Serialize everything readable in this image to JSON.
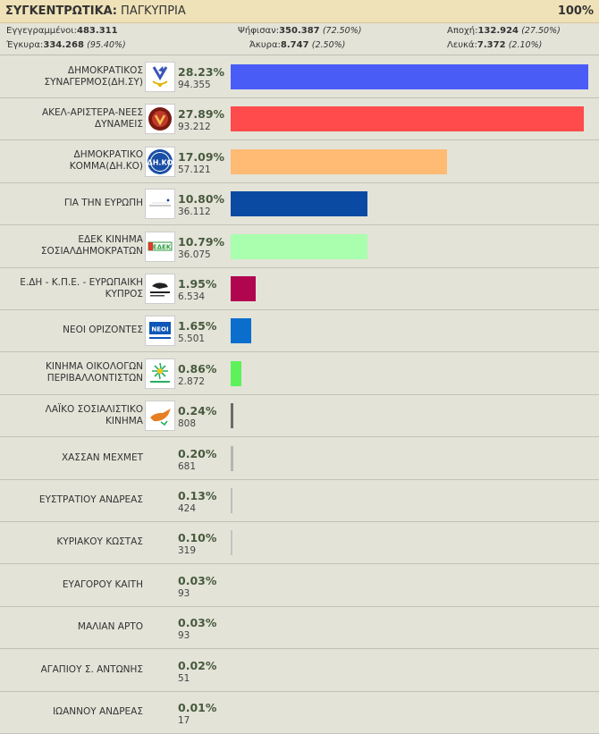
{
  "header": {
    "title_bold": "ΣΥΓΚΕΝΤΡΩΤΙΚΑ:",
    "title_rest": " ΠΑΓΚΥΠΡΙΑ",
    "percent": "100%"
  },
  "stats": {
    "registered": {
      "label": "Εγγεγραμμένοι:",
      "value": "483.311",
      "pct": ""
    },
    "voted": {
      "label": "Ψήφισαν:",
      "value": "350.387",
      "pct": "(72.50%)"
    },
    "abstention": {
      "label": "Αποχή:",
      "value": "132.924",
      "pct": "(27.50%)"
    },
    "valid": {
      "label": "Έγκυρα:",
      "value": "334.268",
      "pct": "(95.40%)"
    },
    "invalid": {
      "label": "Άκυρα:",
      "value": "8.747",
      "pct": "(2.50%)"
    },
    "blank": {
      "label": "Λευκά:",
      "value": "7.372",
      "pct": "(2.10%)"
    }
  },
  "results": [
    {
      "name": "ΔΗΜΟΚΡΑΤΙΚΟΣ ΣΥΝΑΓΕΡΜΟΣ(ΔΗ.ΣΥ)",
      "pct_label": "28.23%",
      "votes": "94.355",
      "pct": 28.23,
      "color": "#4a5cf6",
      "logo": "disy-logo",
      "logo_text": ""
    },
    {
      "name": "ΑΚΕΛ-ΑΡΙΣΤΕΡΑ-ΝΕΕΣ ΔΥΝΑΜΕΙΣ",
      "pct_label": "27.89%",
      "votes": "93.212",
      "pct": 27.89,
      "color": "#ff4b4b",
      "logo": "akel-logo",
      "logo_text": ""
    },
    {
      "name": "ΔΗΜΟΚΡΑΤΙΚΟ ΚΟΜΜΑ(ΔΗ.ΚΟ)",
      "pct_label": "17.09%",
      "votes": "57.121",
      "pct": 17.09,
      "color": "#ffba73",
      "logo": "diko-logo",
      "logo_text": "ΔΗ.ΚΟ"
    },
    {
      "name": "ΓΙΑ ΤΗΝ ΕΥΡΩΠΗ",
      "pct_label": "10.80%",
      "votes": "36.112",
      "pct": 10.8,
      "color": "#0b4aa2",
      "logo": "europe-logo",
      "logo_text": ""
    },
    {
      "name": "ΕΔΕΚ ΚΙΝΗΜΑ ΣΟΣΙΑΛΔΗΜΟΚΡΑΤΩΝ",
      "pct_label": "10.79%",
      "votes": "36.075",
      "pct": 10.79,
      "color": "#a9ffae",
      "logo": "edek-logo",
      "logo_text": "ΕΔΕΚ"
    },
    {
      "name": "Ε.ΔΗ - Κ.Π.Ε. - ΕΥΡΩΠΑΙΚΗ ΚΥΠΡΟΣ",
      "pct_label": "1.95%",
      "votes": "6.534",
      "pct": 1.95,
      "color": "#b0054f",
      "logo": "european-cyprus-logo",
      "logo_text": ""
    },
    {
      "name": "ΝΕΟΙ ΟΡΙΖΟΝΤΕΣ",
      "pct_label": "1.65%",
      "votes": "5.501",
      "pct": 1.65,
      "color": "#0a6fcc",
      "logo": "new-horizons-logo",
      "logo_text": "ΝΕΟΙ"
    },
    {
      "name": "ΚΙΝΗΜΑ ΟΙΚΟΛΟΓΩΝ ΠΕΡΙΒΑΛΛΟΝΤΙΣΤΩΝ",
      "pct_label": "0.86%",
      "votes": "2.872",
      "pct": 0.86,
      "color": "#5ef25a",
      "logo": "ecologists-logo",
      "logo_text": ""
    },
    {
      "name": "ΛΑΪΚΟ ΣΟΣΙΑΛΙΣΤΙΚΟ ΚΙΝΗΜΑ",
      "pct_label": "0.24%",
      "votes": "808",
      "pct": 0.24,
      "color": "#6b6b6b",
      "logo": "popular-socialist-logo",
      "logo_text": ""
    },
    {
      "name": "ΧΑΣΣΑΝ ΜΕΧΜΕΤ",
      "pct_label": "0.20%",
      "votes": "681",
      "pct": 0.2,
      "color": "#b5b5b5",
      "logo": "",
      "logo_text": ""
    },
    {
      "name": "ΕΥΣΤΡΑΤΙΟΥ ΑΝΔΡΕΑΣ",
      "pct_label": "0.13%",
      "votes": "424",
      "pct": 0.13,
      "color": "#bdbdbd",
      "logo": "",
      "logo_text": ""
    },
    {
      "name": "ΚΥΡΙΑΚΟΥ ΚΩΣΤΑΣ",
      "pct_label": "0.10%",
      "votes": "319",
      "pct": 0.1,
      "color": "#c4c4c4",
      "logo": "",
      "logo_text": ""
    },
    {
      "name": "ΕΥΑΓΟΡΟΥ ΚΑΙΤΗ",
      "pct_label": "0.03%",
      "votes": "93",
      "pct": 0.03,
      "color": "#d0d0d0",
      "logo": "",
      "logo_text": ""
    },
    {
      "name": "ΜΑΛΙΑΝ ΑΡΤΟ",
      "pct_label": "0.03%",
      "votes": "93",
      "pct": 0.03,
      "color": "#d0d0d0",
      "logo": "",
      "logo_text": ""
    },
    {
      "name": "ΑΓΑΠΙΟΥ Σ. ΑΝΤΩΝΗΣ",
      "pct_label": "0.02%",
      "votes": "51",
      "pct": 0.02,
      "color": "#d0d0d0",
      "logo": "",
      "logo_text": ""
    },
    {
      "name": "ΙΩΑΝΝΟΥ ΑΝΔΡΕΑΣ",
      "pct_label": "0.01%",
      "votes": "17",
      "pct": 0.01,
      "color": "#d0d0d0",
      "logo": "",
      "logo_text": ""
    }
  ]
}
